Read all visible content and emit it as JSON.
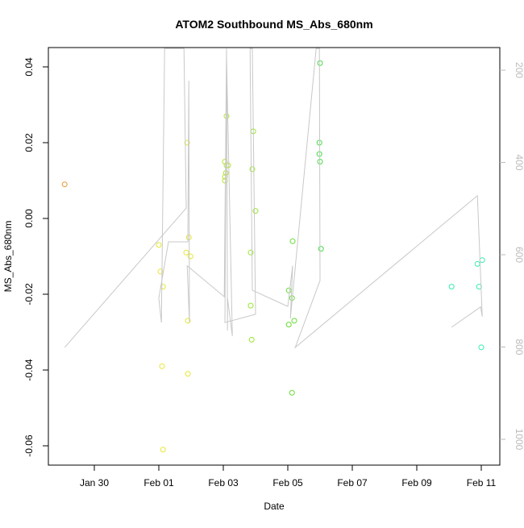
{
  "chart_data": {
    "type": "scatter",
    "title": "ATOM2 Southbound MS_Abs_680nm",
    "x_label": "Date",
    "y_label": "MS_Abs_680nm",
    "xlim": [
      28.575,
      42.575
    ],
    "xticks": [
      {
        "value": 30,
        "label": "Jan 30"
      },
      {
        "value": 32,
        "label": "Feb 01"
      },
      {
        "value": 34,
        "label": "Feb 03"
      },
      {
        "value": 36,
        "label": "Feb 05"
      },
      {
        "value": 38,
        "label": "Feb 07"
      },
      {
        "value": 40,
        "label": "Feb 09"
      },
      {
        "value": 42,
        "label": "Feb 11"
      }
    ],
    "ylim": [
      -0.0651,
      0.0451
    ],
    "yticks": [
      -0.06,
      -0.04,
      -0.02,
      {
        "value": 0,
        "label": "0.00"
      },
      0.02,
      0.04
    ],
    "y2lim": [
      1056,
      151
    ],
    "y2ticks": [
      200,
      400,
      600,
      800,
      1000
    ],
    "y2_color": "#bbbbbb",
    "series": [
      {
        "color": "#f0922e",
        "x": [
          29.08
        ],
        "values": [
          0.009
        ]
      },
      {
        "color": "#e6e633",
        "x": [
          32.0,
          32.05,
          32.13,
          32.1,
          32.13,
          32.88,
          32.93,
          32.85,
          32.98,
          32.9,
          32.9
        ],
        "values": [
          -0.007,
          -0.014,
          -0.018,
          -0.039,
          -0.061,
          0.02,
          -0.005,
          -0.009,
          -0.01,
          -0.027,
          -0.041
        ]
      },
      {
        "color": "#b5e62e",
        "x": [
          34.1,
          34.05,
          34.08,
          34.05,
          34.1,
          34.15,
          34.05
        ],
        "values": [
          0.027,
          0.015,
          0.012,
          0.011,
          0.014,
          0.014,
          0.01
        ]
      },
      {
        "color": "#99e62e",
        "x": [
          34.93,
          34.9,
          35.0,
          34.85,
          34.85,
          34.88
        ],
        "values": [
          0.023,
          0.013,
          0.002,
          -0.009,
          -0.023,
          -0.032
        ]
      },
      {
        "color": "#66dd33",
        "x": [
          36.15,
          36.03,
          36.13,
          36.03,
          36.2,
          36.13
        ],
        "values": [
          -0.006,
          -0.019,
          -0.021,
          -0.028,
          -0.027,
          -0.046
        ]
      },
      {
        "color": "#44dd44",
        "x": [
          37.0,
          36.98,
          36.98,
          37.0,
          37.03
        ],
        "values": [
          0.041,
          0.02,
          0.017,
          0.015,
          -0.008
        ]
      },
      {
        "color": "#33eeaa",
        "x": [
          41.08,
          41.88,
          42.03,
          41.93,
          42.0
        ],
        "values": [
          -0.018,
          -0.012,
          -0.011,
          -0.018,
          -0.034
        ]
      },
      {
        "type": "line",
        "axis": "y2",
        "color": "#c8c8c8",
        "x": [
          29.08,
          32.85,
          32.78,
          32.18,
          32.08,
          32.0,
          32.3,
          32.9,
          32.93,
          32.95,
          32.88,
          34.03,
          34.1,
          34.13,
          34.13,
          34.28,
          34.1,
          34.05,
          35.0,
          34.9,
          34.83,
          34.9,
          36.0,
          36.15,
          36.08,
          36.88,
          36.98,
          37.0,
          36.23,
          41.88,
          42.03,
          41.98,
          41.08
        ],
        "values": [
          801,
          499,
          153,
          153,
          747,
          694,
          572,
          572,
          223,
          747,
          624,
          691,
          153,
          764,
          694,
          776,
          170,
          747,
          729,
          153,
          153,
          677,
          712,
          624,
          738,
          153,
          153,
          656,
          801,
          472,
          734,
          713,
          757
        ]
      }
    ]
  }
}
